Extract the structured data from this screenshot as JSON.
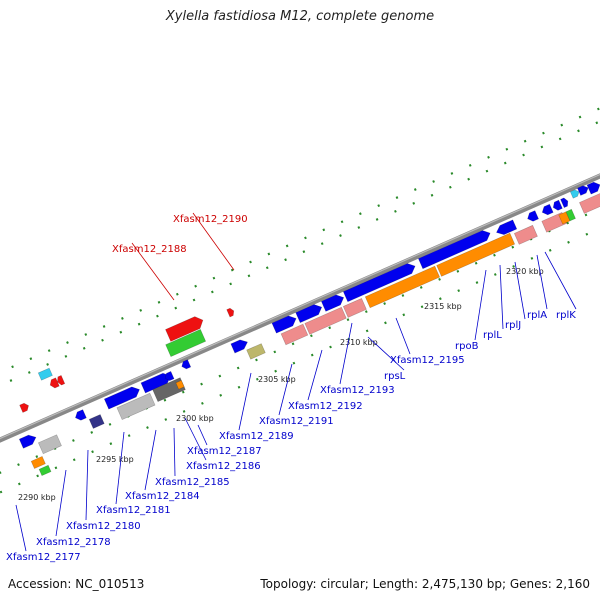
{
  "title": "Xylella fastidiosa M12, complete genome",
  "footer": {
    "accession": "Accession: NC_010513",
    "summary": "Topology: circular; Length: 2,475,130 bp; Genes: 2,160"
  },
  "colors": {
    "blue": "#0000ee",
    "pink": "#ee8c8c",
    "orange": "#ff8c00",
    "green": "#33cc33",
    "red": "#ee1111",
    "gray": "#bbbbbb",
    "darkgray": "#666666",
    "khaki": "#bdb76b",
    "navy": "#333388",
    "cyan": "#33ccee",
    "label_blue": "#0000cc",
    "label_red": "#cc0000"
  },
  "ticks": [
    {
      "label": "2290 kbp"
    },
    {
      "label": "2295 kbp"
    },
    {
      "label": "2300 kbp"
    },
    {
      "label": "2305 kbp"
    },
    {
      "label": "2310 kbp"
    },
    {
      "label": "2315 kbp"
    },
    {
      "label": "2320 kbp"
    }
  ],
  "labels": [
    {
      "name": "label-xfasm12-2190",
      "text": "Xfasm12_2190",
      "color": "red"
    },
    {
      "name": "label-xfasm12-2188",
      "text": "Xfasm12_2188",
      "color": "red"
    },
    {
      "name": "label-rpob",
      "text": "rpoB",
      "color": "blue"
    },
    {
      "name": "label-rpll",
      "text": "rplL",
      "color": "blue"
    },
    {
      "name": "label-rplj",
      "text": "rplJ",
      "color": "blue"
    },
    {
      "name": "label-rpla",
      "text": "rplA",
      "color": "blue"
    },
    {
      "name": "label-rplk",
      "text": "rplK",
      "color": "blue"
    },
    {
      "name": "label-xfasm12-2195",
      "text": "Xfasm12_2195",
      "color": "blue"
    },
    {
      "name": "label-rpsl",
      "text": "rpsL",
      "color": "blue"
    },
    {
      "name": "label-xfasm12-2193",
      "text": "Xfasm12_2193",
      "color": "blue"
    },
    {
      "name": "label-xfasm12-2192",
      "text": "Xfasm12_2192",
      "color": "blue"
    },
    {
      "name": "label-xfasm12-2191",
      "text": "Xfasm12_2191",
      "color": "blue"
    },
    {
      "name": "label-xfasm12-2189",
      "text": "Xfasm12_2189",
      "color": "blue"
    },
    {
      "name": "label-xfasm12-2187",
      "text": "Xfasm12_2187",
      "color": "blue"
    },
    {
      "name": "label-xfasm12-2186",
      "text": "Xfasm12_2186",
      "color": "blue"
    },
    {
      "name": "label-xfasm12-2185",
      "text": "Xfasm12_2185",
      "color": "blue"
    },
    {
      "name": "label-xfasm12-2184",
      "text": "Xfasm12_2184",
      "color": "blue"
    },
    {
      "name": "label-xfasm12-2181",
      "text": "Xfasm12_2181",
      "color": "blue"
    },
    {
      "name": "label-xfasm12-2180",
      "text": "Xfasm12_2180",
      "color": "blue"
    },
    {
      "name": "label-xfasm12-2178",
      "text": "Xfasm12_2178",
      "color": "blue"
    },
    {
      "name": "label-xfasm12-2177",
      "text": "Xfasm12_2177",
      "color": "blue"
    }
  ]
}
